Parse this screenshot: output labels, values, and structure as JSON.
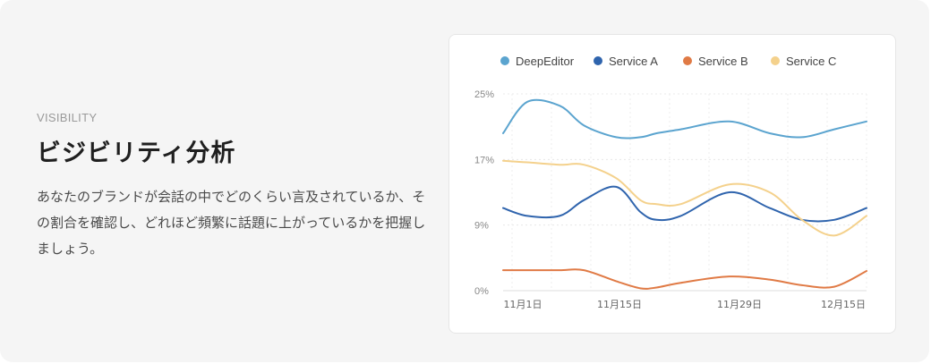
{
  "section": {
    "eyebrow": "VISIBILITY",
    "title": "ビジビリティ分析",
    "description": "あなたのブランドが会話の中でどのくらい言及されているか、その割合を確認し、どれほど頻繁に話題に上がっているかを把握しましょう。"
  },
  "chart_data": {
    "type": "line",
    "title": "",
    "xlabel": "",
    "ylabel": "",
    "x_ticks": [
      "11月1日",
      "11月15日",
      "11月29日",
      "12月15日"
    ],
    "y_ticks": [
      "25%",
      "17%",
      "9%",
      "0%"
    ],
    "ylim": [
      0,
      25
    ],
    "grid": true,
    "legend_position": "top",
    "x_days": [
      0,
      3,
      7,
      10,
      14,
      17,
      19,
      22,
      28,
      33,
      37,
      41,
      45
    ],
    "series": [
      {
        "name": "DeepEditor",
        "color": "#5ba4cf",
        "values": [
          20.0,
          24.0,
          23.5,
          21.0,
          19.5,
          19.5,
          20.0,
          20.5,
          21.5,
          20.0,
          19.5,
          20.5,
          21.5
        ]
      },
      {
        "name": "Service A",
        "color": "#2f64ad",
        "values": [
          10.5,
          9.5,
          9.5,
          11.5,
          13.2,
          10.0,
          9.0,
          9.5,
          12.5,
          10.5,
          9.0,
          9.0,
          10.5
        ]
      },
      {
        "name": "Service B",
        "color": "#e07a45",
        "values": [
          2.6,
          2.6,
          2.6,
          2.6,
          1.2,
          0.3,
          0.4,
          1.0,
          1.8,
          1.4,
          0.7,
          0.5,
          2.5
        ]
      },
      {
        "name": "Service C",
        "color": "#f4d18c",
        "values": [
          16.5,
          16.3,
          16.0,
          16.0,
          14.3,
          11.5,
          11.0,
          11.0,
          13.5,
          12.5,
          9.0,
          7.0,
          9.5
        ]
      }
    ]
  }
}
